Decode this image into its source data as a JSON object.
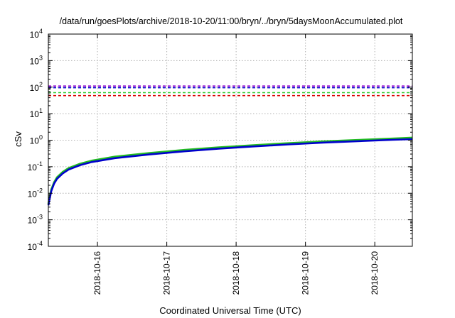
{
  "chart_data": {
    "type": "line",
    "title": "/data/run/goesPlots/archive/2018-10-20/11:00/bryn/../bryn/5daysMoonAccumulated.plot",
    "xlabel": "Coordinated Universal Time (UTC)",
    "ylabel": "cSv",
    "y_scale": "log",
    "xlim": [
      "2018-10-15T07:00",
      "2018-10-20T13:00"
    ],
    "ylim": [
      0.0001,
      10000
    ],
    "y_ticks": [
      {
        "value": 0.0001,
        "base": "10",
        "exp": "-4"
      },
      {
        "value": 0.001,
        "base": "10",
        "exp": "-3"
      },
      {
        "value": 0.01,
        "base": "10",
        "exp": "-2"
      },
      {
        "value": 0.1,
        "base": "10",
        "exp": "-1"
      },
      {
        "value": 1,
        "base": "10",
        "exp": "0"
      },
      {
        "value": 10,
        "base": "10",
        "exp": "1"
      },
      {
        "value": 100,
        "base": "10",
        "exp": "2"
      },
      {
        "value": 1000,
        "base": "10",
        "exp": "3"
      },
      {
        "value": 10000,
        "base": "10",
        "exp": "4"
      }
    ],
    "x_ticks": [
      "2018-10-16",
      "2018-10-17",
      "2018-10-18",
      "2018-10-19",
      "2018-10-20"
    ],
    "grid": true,
    "reference_lines": [
      {
        "y": 110,
        "color": "#9400d3",
        "style": "dashed"
      },
      {
        "y": 95,
        "color": "#0000cd",
        "style": "dashed"
      },
      {
        "y": 62,
        "color": "#33cc33",
        "style": "dashed"
      },
      {
        "y": 48,
        "color": "#dd0000",
        "style": "dashed"
      }
    ],
    "series": [
      {
        "color": "#22bb22",
        "x": [
          "2018-10-15T07:00",
          "2018-10-15T08:00",
          "2018-10-15T09:00",
          "2018-10-15T10:00",
          "2018-10-15T12:00",
          "2018-10-15T14:00",
          "2018-10-15T18:00",
          "2018-10-15T22:00",
          "2018-10-16T06:00",
          "2018-10-16T18:00",
          "2018-10-17T06:00",
          "2018-10-17T18:00",
          "2018-10-18T06:00",
          "2018-10-18T18:00",
          "2018-10-19T06:00",
          "2018-10-19T18:00",
          "2018-10-20T06:00",
          "2018-10-20T13:00"
        ],
        "y": [
          0.004,
          0.014,
          0.026,
          0.04,
          0.064,
          0.088,
          0.13,
          0.17,
          0.24,
          0.33,
          0.43,
          0.54,
          0.65,
          0.77,
          0.9,
          1.02,
          1.15,
          1.25
        ]
      },
      {
        "color": "#0000cc",
        "x": [
          "2018-10-15T07:00",
          "2018-10-15T08:00",
          "2018-10-15T09:00",
          "2018-10-15T10:00",
          "2018-10-15T12:00",
          "2018-10-15T14:00",
          "2018-10-15T18:00",
          "2018-10-15T22:00",
          "2018-10-16T06:00",
          "2018-10-16T18:00",
          "2018-10-17T06:00",
          "2018-10-17T18:00",
          "2018-10-18T06:00",
          "2018-10-18T18:00",
          "2018-10-19T06:00",
          "2018-10-19T18:00",
          "2018-10-20T06:00",
          "2018-10-20T13:00"
        ],
        "y": [
          0.0035,
          0.012,
          0.023,
          0.035,
          0.056,
          0.078,
          0.115,
          0.15,
          0.21,
          0.29,
          0.38,
          0.48,
          0.58,
          0.69,
          0.81,
          0.92,
          1.03,
          1.1
        ]
      }
    ]
  }
}
